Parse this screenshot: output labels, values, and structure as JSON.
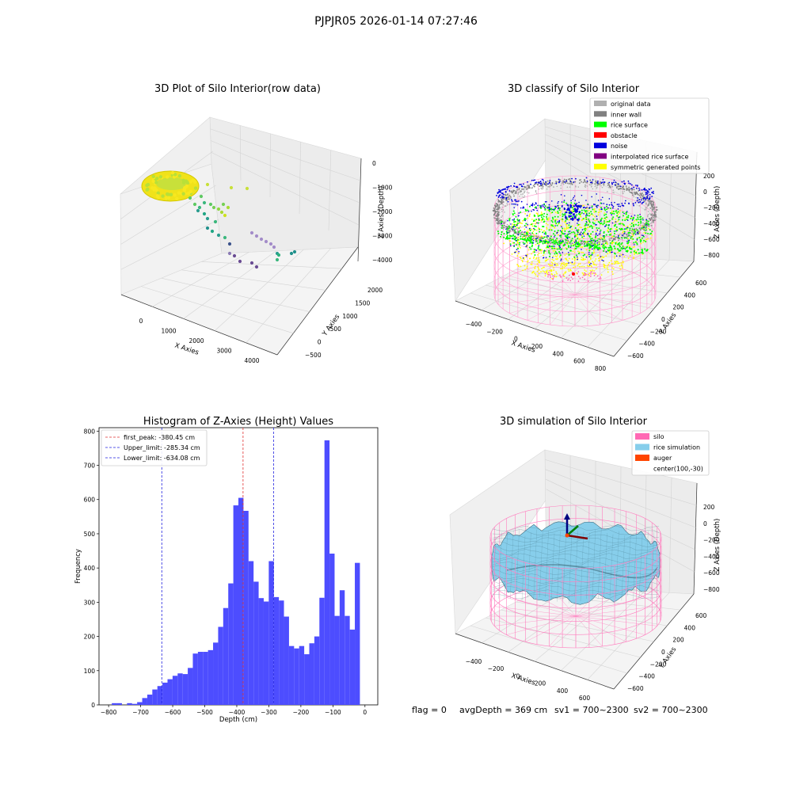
{
  "suptitle": "PJPJR05 2026-01-14 07:27:46",
  "footer": {
    "flag": "flag = 0",
    "avg": "avgDepth = 369 cm",
    "sv1": "sv1 = 700~2300",
    "sv2": "sv2 = 700~2300"
  },
  "colors": {
    "hist_bar": "#4d4dff",
    "first_peak": "#e03030",
    "limits": "#2020e0",
    "original": "#b0b0b0",
    "inner_wall": "#808080",
    "rice_surface": "#00ff00",
    "obstacle": "#ff0000",
    "noise": "#0000dd",
    "interp": "#800080",
    "symmetric": "#ffff00",
    "silo": "#ff69b4",
    "rice_sim": "#87ceeb",
    "auger": "#ff4500"
  },
  "chart_data": [
    {
      "type": "scatter",
      "title": "3D Plot of Silo Interior(row data)",
      "xlabel": "X Axies",
      "ylabel": "Y Axies",
      "zlabel": "Z Axies (Depth)",
      "x_ticks": [
        "0",
        "1000",
        "2000",
        "3000",
        "4000"
      ],
      "y_ticks": [
        "−500",
        "0",
        "500",
        "1000",
        "1500",
        "2000"
      ],
      "z_ticks": [
        "0",
        "−1000",
        "−2000",
        "−3000",
        "−4000"
      ],
      "xlim": [
        -500,
        4500
      ],
      "ylim": [
        -700,
        2200
      ],
      "zlim": [
        -4500,
        100
      ]
    },
    {
      "type": "scatter",
      "title": "3D classify of Silo Interior",
      "xlabel": "X Axies",
      "ylabel": "Y Axies",
      "zlabel": "Z Axies (Depth)",
      "x_ticks": [
        "−400",
        "−200",
        "0",
        "200",
        "400",
        "600",
        "800"
      ],
      "y_ticks": [
        "−600",
        "−400",
        "−200",
        "0",
        "200",
        "400",
        "600"
      ],
      "z_ticks": [
        "200",
        "0",
        "−200",
        "−400",
        "−600",
        "−800"
      ],
      "legend": [
        "original data",
        "inner wall",
        "rice surface",
        "obstacle",
        "noise",
        "interpolated rice surface",
        "symmetric generated points"
      ],
      "legend_loc": "top-right"
    },
    {
      "type": "bar",
      "title": "Histogram of Z-Axies (Height) Values",
      "xlabel": "Depth (cm)",
      "ylabel": "Frequency",
      "xlim": [
        -830,
        40
      ],
      "ylim": [
        0,
        810
      ],
      "x_ticks": [
        -800,
        -700,
        -600,
        -500,
        -400,
        -300,
        -200,
        -100,
        0
      ],
      "y_ticks": [
        0,
        100,
        200,
        300,
        400,
        500,
        600,
        700,
        800
      ],
      "bin_start": -790,
      "bin_width": 15.8,
      "values": [
        5,
        5,
        0,
        5,
        3,
        8,
        20,
        30,
        45,
        55,
        65,
        75,
        85,
        92,
        90,
        108,
        150,
        155,
        155,
        160,
        182,
        228,
        283,
        355,
        583,
        605,
        567,
        420,
        360,
        312,
        302,
        420,
        315,
        305,
        258,
        172,
        165,
        172,
        148,
        180,
        200,
        313,
        773,
        442,
        260,
        335,
        260,
        220,
        415
      ],
      "lines": [
        {
          "name": "first_peak: -380.45 cm",
          "x": -380.45,
          "style": "first_peak"
        },
        {
          "name": "Upper_limit: -285.34 cm",
          "x": -285.34,
          "style": "limits"
        },
        {
          "name": "Lower_limit: -634.08 cm",
          "x": -634.08,
          "style": "limits"
        }
      ],
      "legend_loc": "top-left"
    },
    {
      "type": "area",
      "title": "3D simulation of Silo Interior",
      "xlabel": "X Axies",
      "ylabel": "Y Axies",
      "zlabel": "Z Axies (Depth)",
      "x_ticks": [
        "−400",
        "−200",
        "0",
        "200",
        "400",
        "600"
      ],
      "y_ticks": [
        "−600",
        "−400",
        "−200",
        "0",
        "200",
        "400",
        "600"
      ],
      "z_ticks": [
        "200",
        "0",
        "−200",
        "−400",
        "−600",
        "−800"
      ],
      "legend": [
        "silo",
        "rice simulation",
        "auger",
        "center(100,-30)"
      ],
      "legend_loc": "top-right"
    }
  ]
}
